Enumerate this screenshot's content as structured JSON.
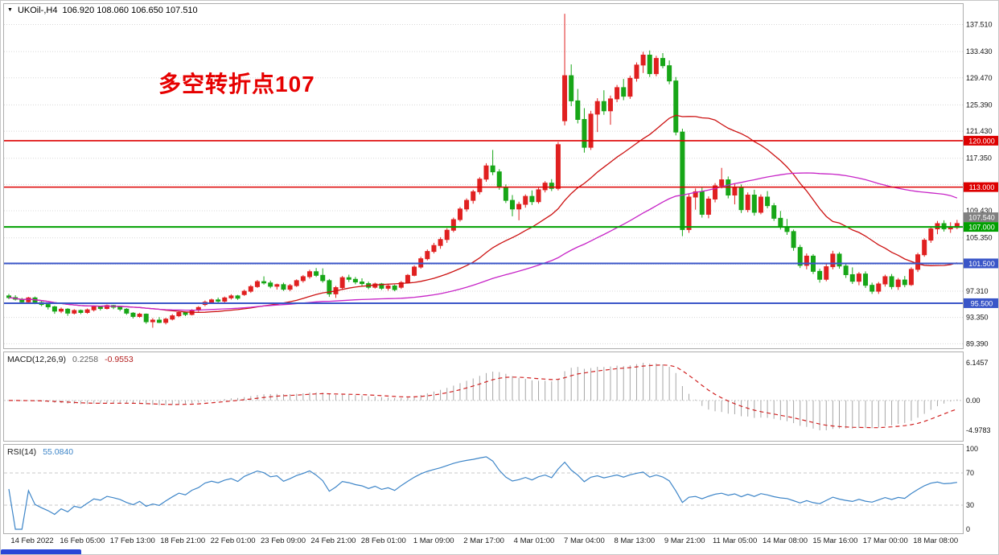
{
  "title": {
    "menu_icon": "▼",
    "symbol_tf": "UKOil-,H4",
    "ohlc": "106.920 108.060 106.650 107.510"
  },
  "chart_data": {
    "type": "candlestick",
    "symbol": "UKOil-",
    "timeframe": "H4",
    "annotation": "多空转折点107",
    "colors": {
      "up": "#e02020",
      "down": "#17a617"
    },
    "price_axis": {
      "grid": [
        {
          "p": 137.51,
          "label": "137.510"
        },
        {
          "p": 133.43,
          "label": "133.430"
        },
        {
          "p": 129.47,
          "label": "129.470"
        },
        {
          "p": 125.39,
          "label": "125.390"
        },
        {
          "p": 121.43,
          "label": "121.430"
        },
        {
          "p": 117.35,
          "label": "117.350"
        },
        {
          "p": 113.39,
          "label": ""
        },
        {
          "p": 109.43,
          "label": "109.430"
        },
        {
          "p": 105.35,
          "label": "105.350"
        },
        {
          "p": 101.39,
          "label": ""
        },
        {
          "p": 97.31,
          "label": "97.310"
        },
        {
          "p": 93.35,
          "label": "93.350"
        },
        {
          "p": 89.39,
          "label": "89.390"
        }
      ]
    },
    "levels": [
      {
        "price": 120.0,
        "label": "120.000",
        "color": "#dd0000",
        "width": 1.6
      },
      {
        "price": 113.0,
        "label": "113.000",
        "color": "#dd0000",
        "width": 1.6
      },
      {
        "price": 107.0,
        "label": "107.000",
        "color": "#00a000",
        "width": 2
      },
      {
        "price": 101.5,
        "label": "101.500",
        "color": "#3a56c8",
        "width": 2
      },
      {
        "price": 95.5,
        "label": "95.500",
        "color": "#3a56c8",
        "width": 2
      }
    ],
    "ask_badge": {
      "price": 107.54,
      "label": "107.540",
      "color": "#808080"
    },
    "moving_averages": [
      {
        "period": 24,
        "color": "#cc1111"
      },
      {
        "period": 60,
        "color": "#c724c7"
      }
    ],
    "macd": {
      "label": "MACD(12,26,9)",
      "value_main": "0.2258",
      "value_signal": "-0.9553",
      "fast": 12,
      "slow": 26,
      "signal_period": 9,
      "axis": [
        "6.1457",
        "0.00",
        "-4.9783"
      ],
      "hist_color": "#a6a6a6",
      "signal_color": "#d02020"
    },
    "rsi": {
      "label": "RSI(14)",
      "value": "55.0840",
      "period": 14,
      "axis": [
        "100",
        "70",
        "30",
        "0"
      ],
      "levels": [
        70,
        30
      ],
      "color": "#3d85c8"
    },
    "time_labels": [
      "14 Feb 2022",
      "16 Feb 05:00",
      "17 Feb 13:00",
      "18 Feb 21:00",
      "22 Feb 01:00",
      "23 Feb 09:00",
      "24 Feb 21:00",
      "28 Feb 01:00",
      "1 Mar 09:00",
      "2 Mar 17:00",
      "4 Mar 01:00",
      "7 Mar 04:00",
      "8 Mar 13:00",
      "9 Mar 21:00",
      "11 Mar 05:00",
      "14 Mar 08:00",
      "15 Mar 16:00",
      "17 Mar 00:00",
      "18 Mar 08:00"
    ],
    "candles": [
      [
        96.6,
        96.9,
        96.1,
        96.35
      ],
      [
        96.35,
        96.7,
        95.9,
        96.1
      ],
      [
        96.1,
        96.3,
        95.4,
        95.7
      ],
      [
        95.7,
        96.45,
        95.5,
        96.3
      ],
      [
        96.3,
        96.5,
        95.35,
        95.6
      ],
      [
        95.6,
        95.85,
        95.05,
        95.3
      ],
      [
        95.3,
        95.45,
        94.55,
        94.95
      ],
      [
        94.95,
        95.1,
        93.9,
        94.3
      ],
      [
        94.3,
        94.85,
        94.0,
        94.6
      ],
      [
        94.6,
        94.75,
        93.6,
        94.0
      ],
      [
        94.0,
        94.6,
        93.8,
        94.4
      ],
      [
        94.4,
        94.55,
        93.85,
        94.1
      ],
      [
        94.1,
        94.7,
        93.9,
        94.5
      ],
      [
        94.5,
        95.15,
        94.25,
        94.95
      ],
      [
        94.95,
        95.05,
        94.4,
        94.7
      ],
      [
        94.7,
        95.3,
        94.55,
        95.15
      ],
      [
        95.15,
        95.25,
        94.6,
        94.9
      ],
      [
        94.9,
        95.0,
        94.3,
        94.6
      ],
      [
        94.6,
        94.75,
        93.75,
        94.0
      ],
      [
        94.0,
        94.15,
        93.2,
        93.5
      ],
      [
        93.5,
        94.05,
        93.3,
        93.85
      ],
      [
        93.85,
        93.95,
        92.4,
        92.7
      ],
      [
        92.7,
        93.25,
        91.8,
        92.95
      ],
      [
        92.95,
        93.4,
        92.5,
        92.6
      ],
      [
        92.6,
        93.3,
        92.3,
        93.1
      ],
      [
        93.1,
        93.85,
        92.9,
        93.6
      ],
      [
        93.6,
        94.3,
        93.4,
        94.1
      ],
      [
        94.1,
        94.25,
        93.55,
        93.8
      ],
      [
        93.8,
        94.6,
        93.65,
        94.45
      ],
      [
        94.45,
        95.05,
        94.2,
        94.85
      ],
      [
        95.3,
        95.9,
        95.05,
        95.65
      ],
      [
        95.65,
        96.2,
        95.4,
        96.0
      ],
      [
        96.0,
        96.35,
        95.55,
        95.8
      ],
      [
        95.8,
        96.5,
        95.6,
        96.3
      ],
      [
        96.3,
        96.85,
        96.05,
        96.6
      ],
      [
        96.6,
        96.75,
        96.0,
        96.25
      ],
      [
        96.8,
        97.55,
        96.6,
        97.3
      ],
      [
        97.3,
        98.25,
        97.05,
        98.0
      ],
      [
        98.0,
        99.0,
        97.8,
        98.75
      ],
      [
        98.75,
        99.55,
        98.3,
        98.55
      ],
      [
        98.55,
        98.9,
        97.75,
        98.05
      ],
      [
        98.05,
        98.45,
        97.55,
        98.3
      ],
      [
        98.3,
        98.6,
        97.35,
        97.6
      ],
      [
        97.6,
        98.4,
        97.3,
        98.15
      ],
      [
        98.15,
        99.1,
        97.95,
        98.9
      ],
      [
        98.9,
        99.75,
        98.6,
        99.5
      ],
      [
        99.5,
        100.55,
        99.2,
        100.25
      ],
      [
        100.25,
        100.8,
        99.45,
        99.7
      ],
      [
        99.7,
        100.75,
        98.6,
        98.9
      ],
      [
        98.9,
        99.15,
        96.45,
        96.9
      ],
      [
        96.9,
        98.1,
        96.3,
        97.85
      ],
      [
        97.85,
        99.6,
        97.6,
        99.35
      ],
      [
        99.35,
        99.8,
        98.7,
        99.1
      ],
      [
        99.1,
        99.45,
        98.35,
        98.7
      ],
      [
        98.7,
        99.25,
        98.05,
        98.45
      ],
      [
        98.45,
        98.75,
        97.6,
        97.9
      ],
      [
        97.9,
        98.6,
        97.7,
        98.4
      ],
      [
        98.4,
        98.55,
        97.5,
        97.75
      ],
      [
        97.75,
        98.35,
        97.4,
        98.1
      ],
      [
        98.1,
        98.3,
        97.3,
        97.55
      ],
      [
        97.9,
        98.85,
        97.65,
        98.6
      ],
      [
        98.6,
        99.9,
        98.45,
        99.7
      ],
      [
        99.7,
        101.2,
        99.55,
        100.95
      ],
      [
        100.95,
        102.5,
        100.7,
        102.2
      ],
      [
        102.2,
        103.6,
        101.95,
        103.3
      ],
      [
        103.3,
        104.6,
        103.0,
        104.2
      ],
      [
        104.2,
        105.45,
        103.7,
        105.1
      ],
      [
        105.1,
        106.8,
        104.6,
        106.5
      ],
      [
        106.5,
        108.4,
        106.2,
        108.1
      ],
      [
        108.1,
        110.0,
        107.8,
        109.7
      ],
      [
        109.7,
        111.3,
        109.3,
        111.0
      ],
      [
        111.0,
        112.6,
        110.5,
        112.3
      ],
      [
        112.3,
        114.5,
        111.9,
        114.2
      ],
      [
        114.2,
        116.6,
        113.8,
        116.2
      ],
      [
        116.2,
        118.6,
        114.8,
        115.3
      ],
      [
        115.3,
        115.7,
        112.6,
        113.0
      ],
      [
        113.0,
        113.4,
        110.6,
        111.0
      ],
      [
        111.0,
        111.8,
        108.6,
        109.7
      ],
      [
        109.7,
        110.8,
        108.0,
        110.4
      ],
      [
        110.4,
        111.9,
        109.9,
        111.6
      ],
      [
        111.6,
        112.5,
        110.3,
        110.8
      ],
      [
        110.8,
        112.9,
        110.5,
        112.6
      ],
      [
        112.6,
        113.9,
        112.2,
        113.6
      ],
      [
        113.6,
        114.2,
        112.4,
        112.8
      ],
      [
        112.8,
        119.8,
        112.5,
        119.4
      ],
      [
        123.0,
        139.13,
        122.3,
        129.8
      ],
      [
        129.8,
        131.5,
        125.2,
        126.0
      ],
      [
        126.0,
        127.8,
        122.6,
        123.2
      ],
      [
        123.2,
        124.9,
        118.2,
        119.0
      ],
      [
        119.0,
        124.5,
        118.6,
        124.0
      ],
      [
        124.0,
        126.4,
        121.3,
        125.9
      ],
      [
        125.9,
        127.6,
        123.9,
        124.5
      ],
      [
        124.5,
        126.8,
        122.4,
        126.3
      ],
      [
        126.3,
        128.4,
        125.8,
        128.0
      ],
      [
        128.0,
        129.3,
        126.1,
        126.7
      ],
      [
        126.7,
        129.8,
        126.3,
        129.4
      ],
      [
        129.4,
        131.8,
        128.9,
        131.4
      ],
      [
        131.4,
        133.4,
        130.2,
        132.9
      ],
      [
        132.9,
        133.6,
        129.6,
        130.1
      ],
      [
        130.1,
        132.8,
        129.7,
        132.4
      ],
      [
        132.4,
        133.2,
        130.9,
        131.3
      ],
      [
        131.3,
        132.1,
        128.5,
        129.0
      ],
      [
        129.0,
        129.6,
        120.8,
        121.3
      ],
      [
        121.3,
        121.8,
        105.6,
        106.6
      ],
      [
        106.6,
        112.0,
        106.1,
        111.5
      ],
      [
        111.5,
        112.8,
        109.6,
        112.3
      ],
      [
        112.3,
        112.9,
        108.4,
        108.9
      ],
      [
        108.9,
        111.6,
        108.3,
        111.2
      ],
      [
        111.2,
        113.6,
        110.7,
        113.2
      ],
      [
        113.2,
        115.9,
        112.8,
        114.1
      ],
      [
        114.1,
        114.6,
        111.3,
        111.8
      ],
      [
        111.8,
        113.5,
        110.4,
        113.0
      ],
      [
        113.0,
        113.4,
        109.1,
        109.6
      ],
      [
        109.6,
        112.2,
        109.2,
        111.8
      ],
      [
        111.8,
        112.6,
        108.7,
        109.2
      ],
      [
        109.2,
        111.9,
        108.9,
        111.5
      ],
      [
        111.5,
        112.4,
        109.8,
        110.2
      ],
      [
        110.2,
        110.6,
        107.9,
        108.3
      ],
      [
        108.3,
        109.4,
        106.6,
        107.0
      ],
      [
        107.0,
        108.2,
        105.8,
        106.3
      ],
      [
        106.3,
        106.6,
        103.4,
        103.9
      ],
      [
        103.9,
        104.3,
        100.8,
        101.2
      ],
      [
        101.2,
        103.0,
        100.6,
        102.6
      ],
      [
        102.6,
        102.9,
        99.9,
        100.3
      ],
      [
        100.3,
        100.7,
        98.6,
        99.1
      ],
      [
        99.1,
        101.4,
        98.8,
        101.0
      ],
      [
        101.0,
        103.4,
        100.6,
        102.9
      ],
      [
        102.9,
        103.2,
        100.7,
        101.1
      ],
      [
        101.1,
        101.5,
        99.3,
        99.8
      ],
      [
        99.8,
        100.9,
        98.4,
        98.8
      ],
      [
        98.8,
        100.2,
        98.2,
        99.9
      ],
      [
        99.9,
        100.3,
        97.8,
        98.2
      ],
      [
        98.2,
        98.6,
        96.9,
        97.3
      ],
      [
        97.3,
        98.7,
        96.9,
        98.4
      ],
      [
        98.4,
        99.8,
        98.0,
        99.5
      ],
      [
        99.5,
        99.9,
        97.6,
        98.0
      ],
      [
        98.0,
        99.3,
        97.5,
        99.0
      ],
      [
        99.0,
        99.6,
        97.9,
        98.3
      ],
      [
        98.3,
        100.9,
        98.1,
        100.6
      ],
      [
        100.6,
        103.1,
        100.2,
        102.8
      ],
      [
        102.8,
        105.3,
        102.5,
        105.0
      ],
      [
        105.0,
        107.0,
        104.6,
        106.7
      ],
      [
        106.7,
        107.9,
        105.9,
        107.5
      ],
      [
        107.5,
        108.0,
        106.3,
        106.7
      ],
      [
        106.7,
        107.7,
        106.1,
        106.92
      ],
      [
        106.92,
        108.06,
        106.65,
        107.51
      ]
    ]
  }
}
